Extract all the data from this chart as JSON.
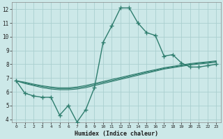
{
  "title": "",
  "xlabel": "Humidex (Indice chaleur)",
  "ylabel": "",
  "background_color": "#cce8e8",
  "grid_color": "#aacfcf",
  "line_color": "#2e7d6e",
  "x_values": [
    0,
    1,
    2,
    3,
    4,
    5,
    6,
    7,
    8,
    9,
    10,
    11,
    12,
    13,
    14,
    15,
    16,
    17,
    18,
    19,
    20,
    21,
    22,
    23
  ],
  "main_y": [
    6.8,
    5.9,
    5.7,
    5.6,
    5.6,
    4.3,
    5.0,
    3.8,
    4.7,
    6.3,
    9.6,
    10.8,
    12.1,
    12.1,
    11.0,
    10.3,
    10.1,
    8.6,
    8.7,
    8.1,
    7.8,
    7.8,
    7.9,
    8.0
  ],
  "line2_y": [
    6.8,
    6.6,
    6.45,
    6.3,
    6.2,
    6.15,
    6.15,
    6.2,
    6.3,
    6.45,
    6.6,
    6.75,
    6.9,
    7.05,
    7.2,
    7.35,
    7.5,
    7.65,
    7.75,
    7.85,
    7.95,
    8.02,
    8.08,
    8.15
  ],
  "line3_y": [
    6.8,
    6.65,
    6.5,
    6.38,
    6.28,
    6.22,
    6.22,
    6.28,
    6.38,
    6.53,
    6.68,
    6.82,
    6.97,
    7.12,
    7.27,
    7.42,
    7.55,
    7.7,
    7.8,
    7.9,
    8.0,
    8.07,
    8.13,
    8.2
  ],
  "line4_y": [
    6.8,
    6.7,
    6.56,
    6.44,
    6.35,
    6.29,
    6.29,
    6.35,
    6.46,
    6.6,
    6.75,
    6.9,
    7.04,
    7.19,
    7.33,
    7.48,
    7.61,
    7.75,
    7.85,
    7.95,
    8.05,
    8.12,
    8.18,
    8.25
  ],
  "xlim": [
    -0.5,
    23.5
  ],
  "ylim": [
    3.8,
    12.5
  ],
  "yticks": [
    4,
    5,
    6,
    7,
    8,
    9,
    10,
    11,
    12
  ],
  "xticks": [
    0,
    1,
    2,
    3,
    4,
    5,
    6,
    7,
    8,
    9,
    10,
    11,
    12,
    13,
    14,
    15,
    16,
    17,
    18,
    19,
    20,
    21,
    22,
    23
  ]
}
